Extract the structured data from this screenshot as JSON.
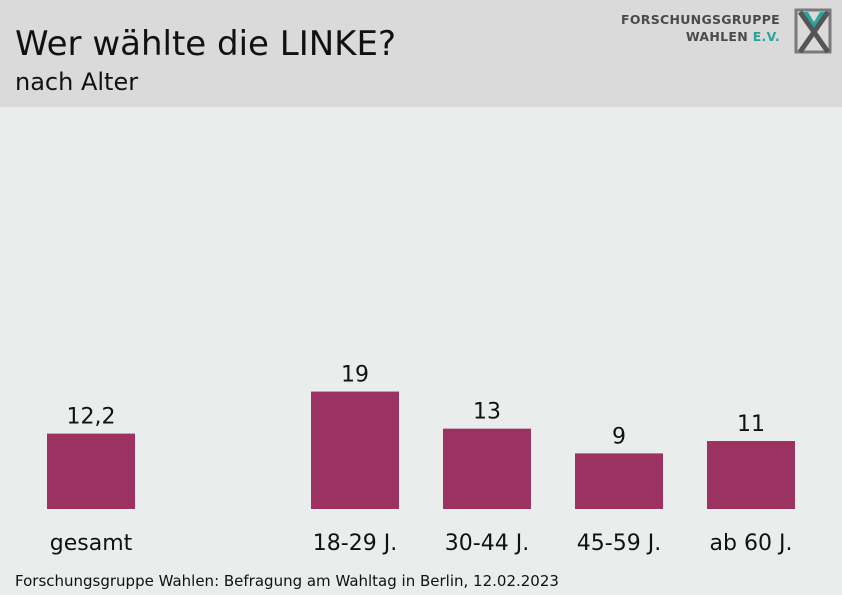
{
  "header": {
    "title": "Wer wählte die LINKE?",
    "subtitle": "nach Alter",
    "logo_line1": "FORSCHUNGSGRUPPE",
    "logo_line2_a": "WAHLEN",
    "logo_line2_b": "E.V."
  },
  "colors": {
    "bar": "#9b3262",
    "header_bg": "#d9dad9",
    "plot_bg": "#e9eeec",
    "logo_accent": "#2aa39a"
  },
  "chart_data": {
    "type": "bar",
    "categories": [
      "gesamt",
      "18-29 J.",
      "30-44 J.",
      "45-59 J.",
      "ab 60 J."
    ],
    "values": [
      12.2,
      19,
      13,
      9,
      11
    ],
    "value_labels": [
      "12,2",
      "19",
      "13",
      "9",
      "11"
    ],
    "title": "Wer wählte die LINKE?",
    "subtitle": "nach Alter",
    "xlabel": "",
    "ylabel": "",
    "ylim": [
      0,
      60
    ],
    "grid": false,
    "legend": "none"
  },
  "footer": {
    "source": "Forschungsgruppe Wahlen: Befragung am Wahltag in Berlin, 12.02.2023"
  }
}
